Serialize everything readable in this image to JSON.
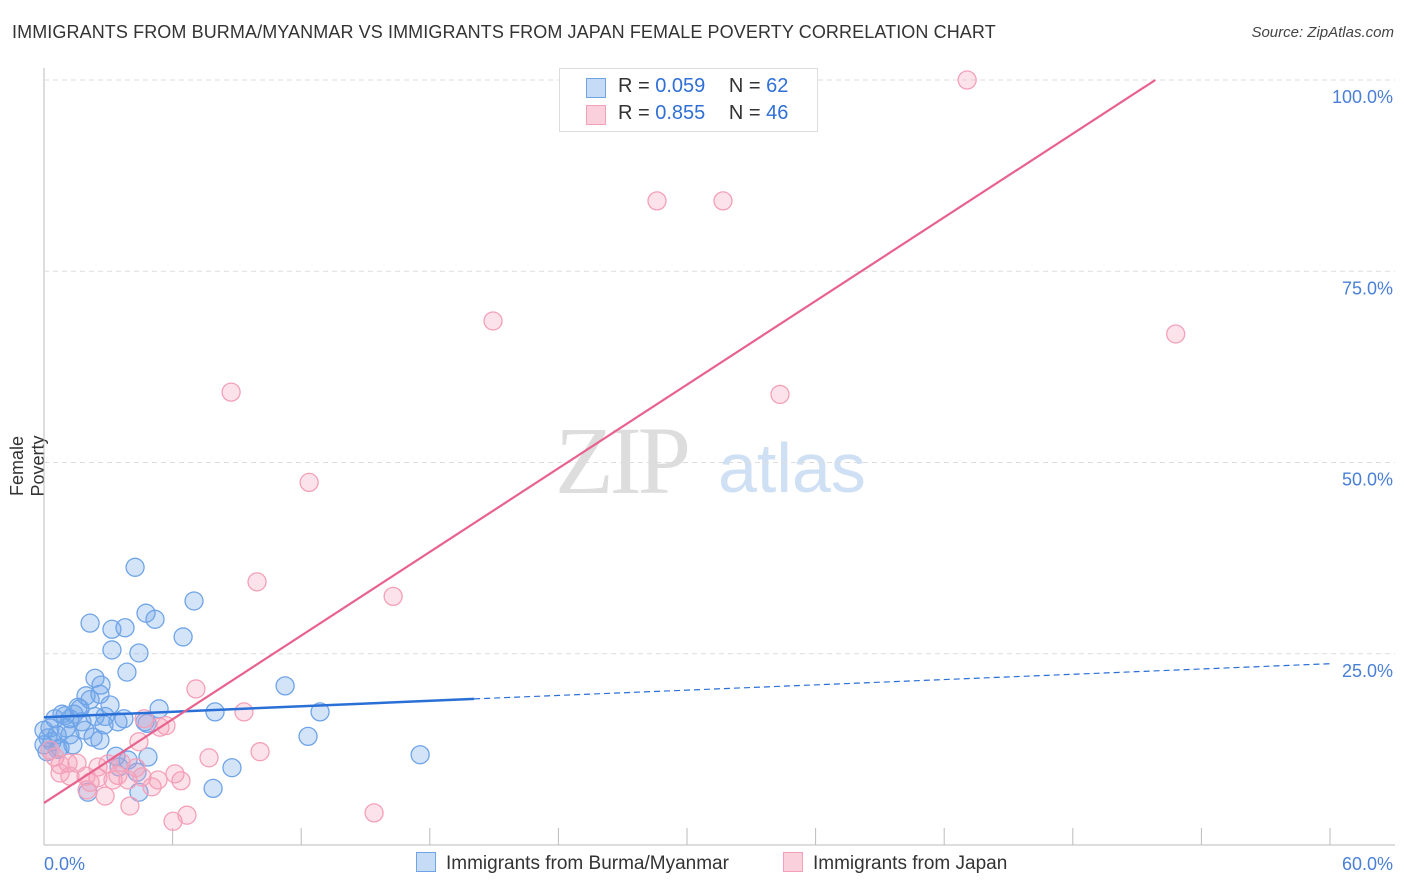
{
  "title": "IMMIGRANTS FROM BURMA/MYANMAR VS IMMIGRANTS FROM JAPAN FEMALE POVERTY CORRELATION CHART",
  "source": "Source: ZipAtlas.com",
  "watermark": "ZIPatlas",
  "legend": {
    "r_label": "R = ",
    "n_label": "N = ",
    "items": [
      {
        "r": "0.059",
        "n": "62"
      },
      {
        "r": "0.855",
        "n": "46"
      }
    ]
  },
  "chart_data": {
    "type": "scatter",
    "title": "IMMIGRANTS FROM BURMA/MYANMAR VS IMMIGRANTS FROM JAPAN FEMALE POVERTY CORRELATION CHART",
    "xlabel": "",
    "ylabel": "Female Poverty",
    "xlim": [
      0,
      60
    ],
    "ylim": [
      0,
      100
    ],
    "x_tick_labels": [
      "0.0%",
      "60.0%"
    ],
    "y_ticks": [
      25,
      50,
      75,
      100
    ],
    "y_tick_labels": [
      "25.0%",
      "50.0%",
      "75.0%",
      "100.0%"
    ],
    "grid": true,
    "legend_position": "bottom",
    "series": [
      {
        "name": "Immigrants from Burma/Myanmar",
        "color": "#6fa4e8",
        "line_color": "#2a6fd6",
        "trend": {
          "x": [
            0,
            20.07,
            60
          ],
          "y": [
            16.7,
            19.1,
            23.7
          ],
          "solid_until": 20.07
        },
        "points": [
          [
            4.25,
            36.3
          ],
          [
            2.15,
            29.0
          ],
          [
            4.76,
            30.3
          ],
          [
            5.18,
            29.5
          ],
          [
            7.0,
            31.9
          ],
          [
            3.17,
            28.2
          ],
          [
            3.78,
            28.4
          ],
          [
            6.49,
            27.2
          ],
          [
            3.17,
            25.5
          ],
          [
            4.43,
            25.1
          ],
          [
            3.87,
            22.6
          ],
          [
            2.38,
            21.8
          ],
          [
            2.66,
            20.9
          ],
          [
            1.96,
            19.5
          ],
          [
            2.61,
            19.7
          ],
          [
            1.59,
            18.0
          ],
          [
            0.84,
            17.1
          ],
          [
            1.4,
            17.1
          ],
          [
            2.38,
            16.8
          ],
          [
            2.85,
            16.8
          ],
          [
            3.73,
            16.5
          ],
          [
            5.37,
            17.8
          ],
          [
            4.81,
            15.9
          ],
          [
            11.25,
            20.8
          ],
          [
            7.98,
            17.4
          ],
          [
            12.88,
            17.4
          ],
          [
            0.51,
            16.5
          ],
          [
            1.21,
            16.5
          ],
          [
            1.77,
            16.1
          ],
          [
            3.45,
            16.1
          ],
          [
            4.71,
            16.1
          ],
          [
            0.28,
            15.3
          ],
          [
            1.03,
            15.3
          ],
          [
            0.61,
            14.4
          ],
          [
            2.61,
            13.7
          ],
          [
            1.35,
            13.1
          ],
          [
            0.37,
            13.5
          ],
          [
            0.65,
            12.5
          ],
          [
            0.19,
            14.0
          ],
          [
            2.29,
            14.1
          ],
          [
            3.36,
            11.6
          ],
          [
            4.85,
            11.5
          ],
          [
            3.92,
            11.1
          ],
          [
            17.55,
            11.8
          ],
          [
            12.32,
            14.2
          ],
          [
            4.34,
            9.5
          ],
          [
            3.5,
            10.2
          ],
          [
            8.77,
            10.1
          ],
          [
            2.05,
            6.9
          ],
          [
            4.43,
            6.9
          ],
          [
            7.89,
            7.4
          ],
          [
            0.75,
            12.7
          ],
          [
            1.91,
            15.0
          ],
          [
            2.8,
            15.7
          ],
          [
            0.0,
            13.1
          ],
          [
            0.14,
            12.2
          ],
          [
            1.21,
            14.4
          ],
          [
            1.68,
            17.8
          ],
          [
            0.98,
            16.9
          ],
          [
            2.15,
            19.0
          ],
          [
            3.08,
            18.3
          ],
          [
            0.0,
            15.0
          ]
        ]
      },
      {
        "name": "Immigrants from Japan",
        "color": "#f4a0b8",
        "line_color": "#e8628e",
        "trend": {
          "x": [
            0,
            51.85
          ],
          "y": [
            5.5,
            100
          ]
        },
        "points": [
          [
            43.07,
            100
          ],
          [
            28.6,
            84.2
          ],
          [
            31.68,
            84.2
          ],
          [
            20.95,
            68.5
          ],
          [
            52.8,
            66.8
          ],
          [
            8.73,
            59.2
          ],
          [
            34.34,
            58.9
          ],
          [
            12.37,
            47.4
          ],
          [
            9.94,
            34.4
          ],
          [
            16.29,
            32.5
          ],
          [
            7.09,
            20.4
          ],
          [
            9.33,
            17.4
          ],
          [
            4.67,
            16.5
          ],
          [
            5.69,
            15.6
          ],
          [
            5.41,
            15.4
          ],
          [
            4.43,
            13.5
          ],
          [
            10.08,
            12.2
          ],
          [
            7.7,
            11.4
          ],
          [
            0.51,
            11.5
          ],
          [
            1.12,
            10.7
          ],
          [
            1.54,
            10.7
          ],
          [
            2.52,
            10.2
          ],
          [
            2.99,
            10.6
          ],
          [
            3.59,
            10.8
          ],
          [
            4.29,
            10.1
          ],
          [
            0.75,
            9.4
          ],
          [
            1.21,
            9.0
          ],
          [
            1.96,
            9.0
          ],
          [
            2.52,
            8.8
          ],
          [
            3.22,
            8.5
          ],
          [
            3.92,
            8.5
          ],
          [
            4.57,
            8.9
          ],
          [
            5.32,
            8.5
          ],
          [
            6.11,
            9.3
          ],
          [
            6.39,
            8.4
          ],
          [
            2.15,
            8.2
          ],
          [
            5.04,
            7.6
          ],
          [
            2.85,
            6.4
          ],
          [
            4.01,
            5.1
          ],
          [
            2.01,
            7.2
          ],
          [
            6.02,
            3.1
          ],
          [
            6.67,
            3.9
          ],
          [
            15.4,
            4.2
          ],
          [
            0.28,
            12.4
          ],
          [
            0.75,
            10.5
          ],
          [
            3.45,
            9.1
          ]
        ]
      }
    ]
  }
}
